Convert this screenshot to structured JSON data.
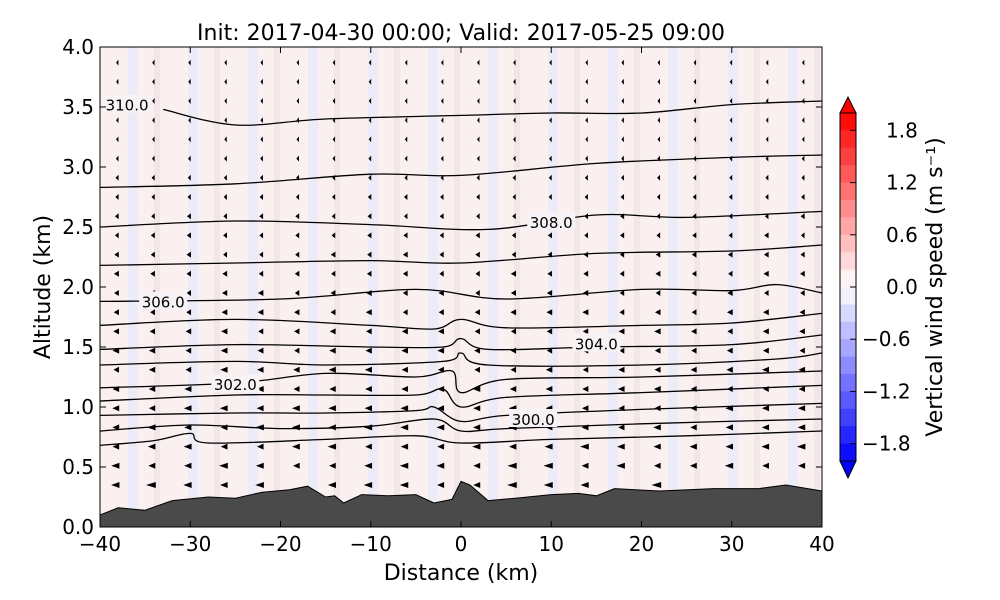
{
  "chart_data": {
    "type": "contour",
    "title": "Init: 2017-04-30 00:00; Valid: 2017-05-25 09:00",
    "xlabel": "Distance (km)",
    "ylabel": "Altitude (km)",
    "xlim": [
      -40,
      40
    ],
    "ylim": [
      0.0,
      4.0
    ],
    "xticks": [
      "−40",
      "−30",
      "−20",
      "−10",
      "0",
      "10",
      "20",
      "30",
      "40"
    ],
    "yticks": [
      "0.0",
      "0.5",
      "1.0",
      "1.5",
      "2.0",
      "2.5",
      "3.0",
      "3.5",
      "4.0"
    ],
    "colorbar": {
      "label": "Vertical wind speed (m s⁻¹)",
      "range": [
        -2.0,
        2.0
      ],
      "ticks": [
        "1.8",
        "1.2",
        "0.6",
        "0.0",
        "−0.6",
        "−1.2",
        "−1.8"
      ],
      "tick_values": [
        1.8,
        1.2,
        0.6,
        0.0,
        -0.6,
        -1.2,
        -1.8
      ],
      "colormap": "bwr",
      "extend": "both"
    },
    "contour_labels": [
      {
        "text": "310.0",
        "x": -37.0,
        "y": 3.52
      },
      {
        "text": "308.0",
        "x": 10.0,
        "y": 2.54
      },
      {
        "text": "306.0",
        "x": -33.0,
        "y": 1.88
      },
      {
        "text": "304.0",
        "x": 15.0,
        "y": 1.53
      },
      {
        "text": "302.0",
        "x": -25.0,
        "y": 1.19
      },
      {
        "text": "300.0",
        "x": 8.0,
        "y": 0.9
      }
    ],
    "theta_contours": [
      {
        "level": 310.0,
        "points": [
          [
            -33.0,
            3.48
          ],
          [
            -25,
            3.35
          ],
          [
            -15,
            3.4
          ],
          [
            0,
            3.43
          ],
          [
            10,
            3.45
          ],
          [
            20,
            3.45
          ],
          [
            30,
            3.52
          ],
          [
            40,
            3.55
          ]
        ]
      },
      {
        "level": 309.5,
        "points": [
          [
            -40,
            2.83
          ],
          [
            -25,
            2.86
          ],
          [
            -10,
            2.94
          ],
          [
            0,
            2.93
          ],
          [
            15,
            3.03
          ],
          [
            30,
            3.08
          ],
          [
            40,
            3.1
          ]
        ]
      },
      {
        "level": 308.0,
        "points": [
          [
            -40,
            2.5
          ],
          [
            -25,
            2.55
          ],
          [
            -10,
            2.52
          ],
          [
            3,
            2.48
          ],
          [
            15,
            2.6
          ],
          [
            25,
            2.58
          ],
          [
            40,
            2.63
          ]
        ]
      },
      {
        "level": 307.0,
        "points": [
          [
            -40,
            2.18
          ],
          [
            -25,
            2.2
          ],
          [
            -10,
            2.22
          ],
          [
            0,
            2.2
          ],
          [
            15,
            2.28
          ],
          [
            30,
            2.3
          ],
          [
            40,
            2.35
          ]
        ]
      },
      {
        "level": 306.0,
        "points": [
          [
            -40,
            1.88
          ],
          [
            -20,
            1.9
          ],
          [
            -5,
            1.98
          ],
          [
            5,
            1.9
          ],
          [
            20,
            1.98
          ],
          [
            30,
            1.97
          ],
          [
            35,
            2.02
          ],
          [
            40,
            1.95
          ]
        ]
      },
      {
        "level": 305.0,
        "points": [
          [
            -40,
            1.68
          ],
          [
            -25,
            1.73
          ],
          [
            -10,
            1.68
          ],
          [
            -3,
            1.65
          ],
          [
            0,
            1.73
          ],
          [
            5,
            1.66
          ],
          [
            20,
            1.68
          ],
          [
            30,
            1.7
          ],
          [
            40,
            1.78
          ]
        ]
      },
      {
        "level": 304.0,
        "points": [
          [
            -40,
            1.48
          ],
          [
            -25,
            1.52
          ],
          [
            -10,
            1.5
          ],
          [
            -2,
            1.5
          ],
          [
            0,
            1.57
          ],
          [
            3,
            1.48
          ],
          [
            15,
            1.5
          ],
          [
            30,
            1.52
          ],
          [
            40,
            1.6
          ]
        ]
      },
      {
        "level": 303.0,
        "points": [
          [
            -40,
            1.35
          ],
          [
            -25,
            1.38
          ],
          [
            -15,
            1.35
          ],
          [
            -2,
            1.38
          ],
          [
            0,
            1.45
          ],
          [
            3,
            1.35
          ],
          [
            20,
            1.35
          ],
          [
            35,
            1.4
          ],
          [
            40,
            1.45
          ]
        ]
      },
      {
        "level": 302.0,
        "points": [
          [
            -40,
            1.16
          ],
          [
            -25,
            1.2
          ],
          [
            -15,
            1.28
          ],
          [
            -5,
            1.25
          ],
          [
            -1,
            1.3
          ],
          [
            0,
            1.12
          ],
          [
            5,
            1.23
          ],
          [
            20,
            1.25
          ],
          [
            40,
            1.3
          ]
        ]
      },
      {
        "level": 301.0,
        "points": [
          [
            -40,
            1.05
          ],
          [
            -25,
            1.1
          ],
          [
            -15,
            1.1
          ],
          [
            -5,
            1.1
          ],
          [
            -2,
            1.15
          ],
          [
            0,
            1.0
          ],
          [
            5,
            1.08
          ],
          [
            20,
            1.12
          ],
          [
            40,
            1.18
          ]
        ]
      },
      {
        "level": 300.0,
        "points": [
          [
            -40,
            0.93
          ],
          [
            -25,
            0.95
          ],
          [
            -15,
            0.95
          ],
          [
            -5,
            0.97
          ],
          [
            -3,
            1.0
          ],
          [
            0,
            0.88
          ],
          [
            5,
            0.93
          ],
          [
            20,
            0.98
          ],
          [
            40,
            1.03
          ]
        ]
      },
      {
        "level": 299.0,
        "points": [
          [
            -40,
            0.8
          ],
          [
            -30,
            0.85
          ],
          [
            -20,
            0.82
          ],
          [
            -10,
            0.84
          ],
          [
            -3,
            0.9
          ],
          [
            0,
            0.8
          ],
          [
            5,
            0.82
          ],
          [
            20,
            0.86
          ],
          [
            40,
            0.9
          ]
        ]
      },
      {
        "level": 298.0,
        "points": [
          [
            -40,
            0.68
          ],
          [
            -34,
            0.72
          ],
          [
            -30,
            0.78
          ],
          [
            -28,
            0.7
          ],
          [
            -15,
            0.73
          ],
          [
            -5,
            0.76
          ],
          [
            0,
            0.7
          ],
          [
            10,
            0.73
          ],
          [
            25,
            0.76
          ],
          [
            40,
            0.8
          ]
        ]
      }
    ],
    "terrain_height": [
      [
        -40,
        0.1
      ],
      [
        -38,
        0.16
      ],
      [
        -35,
        0.14
      ],
      [
        -32,
        0.22
      ],
      [
        -28,
        0.25
      ],
      [
        -25,
        0.24
      ],
      [
        -22,
        0.29
      ],
      [
        -19,
        0.31
      ],
      [
        -17,
        0.34
      ],
      [
        -15,
        0.25
      ],
      [
        -14,
        0.26
      ],
      [
        -13,
        0.2
      ],
      [
        -11,
        0.27
      ],
      [
        -8,
        0.26
      ],
      [
        -5,
        0.27
      ],
      [
        -3,
        0.2
      ],
      [
        -1,
        0.23
      ],
      [
        0,
        0.38
      ],
      [
        1,
        0.35
      ],
      [
        3,
        0.22
      ],
      [
        6,
        0.24
      ],
      [
        10,
        0.27
      ],
      [
        13,
        0.28
      ],
      [
        15,
        0.26
      ],
      [
        17,
        0.32
      ],
      [
        22,
        0.3
      ],
      [
        28,
        0.32
      ],
      [
        33,
        0.32
      ],
      [
        36,
        0.35
      ],
      [
        40,
        0.3
      ]
    ]
  }
}
